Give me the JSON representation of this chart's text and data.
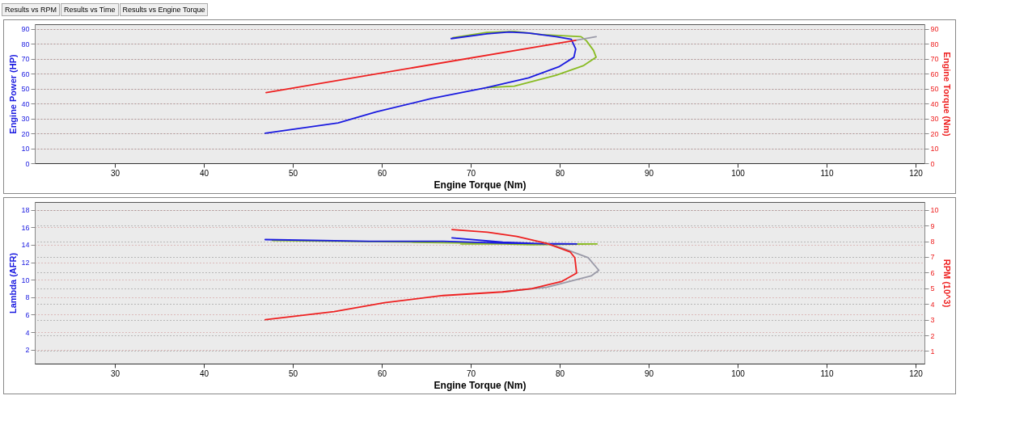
{
  "chart_data": [
    {
      "type": "line",
      "annotations": [
        "Results vs RPM",
        "Results vs Time",
        "Results vs Engine Torque"
      ],
      "xlabel": "Engine Torque (Nm)",
      "ylabel": "Engine Power (HP)",
      "y2label": "Engine Torque (Nm)",
      "xlim": [
        21,
        121
      ],
      "xticks": [
        30,
        40,
        50,
        60,
        70,
        80,
        90,
        100,
        110,
        120
      ],
      "ylim": [
        0,
        93
      ],
      "yticks": [
        0,
        10,
        20,
        30,
        40,
        50,
        60,
        70,
        80,
        90
      ],
      "y2lim": [
        0,
        93
      ],
      "y2ticks": [
        0,
        10,
        20,
        30,
        40,
        50,
        60,
        70,
        80,
        90
      ],
      "grid": "y",
      "series": [
        {
          "color": "#88bb22",
          "x": [
            71.8,
            74.9,
            79.6,
            82.7,
            84.1,
            83.8,
            83.0,
            82.4,
            78.0,
            74.9,
            71.8,
            68.0
          ],
          "values": [
            50.6,
            51.6,
            58.9,
            65.4,
            70.9,
            75.5,
            82,
            84.7,
            86,
            88.2,
            87.5,
            84
          ]
        },
        {
          "color": "#1a1ae0",
          "x": [
            46.9,
            55.1,
            59.4,
            65.6,
            71.8,
            76.5,
            79.9,
            81.6,
            81.8,
            81.3,
            79.6,
            76.5,
            74.3,
            71.8,
            67.8
          ],
          "values": [
            20.1,
            27,
            34.4,
            43.3,
            50.6,
            57.1,
            64.5,
            70.9,
            76.4,
            82.9,
            84.7,
            87.1,
            87.8,
            86.6,
            83.4
          ]
        },
        {
          "color": "#9a9aa8",
          "axis": "y2",
          "x": [
            81.8,
            84.1
          ],
          "values": [
            82.3,
            84.7
          ]
        },
        {
          "color": "#ee2020",
          "axis": "y2",
          "x": [
            47,
            81.8
          ],
          "values": [
            47.3,
            82.3
          ]
        }
      ]
    },
    {
      "type": "line",
      "xlabel": "Engine Torque (Nm)",
      "ylabel": "Lambda (AFR)",
      "y2label": "RPM (10^3)",
      "xlim": [
        21,
        121
      ],
      "xticks": [
        30,
        40,
        50,
        60,
        70,
        80,
        90,
        100,
        110,
        120
      ],
      "ylim": [
        0.4,
        18.9
      ],
      "yticks": [
        2,
        4,
        6,
        8,
        10,
        12,
        14,
        16,
        18
      ],
      "y2lim": [
        0.2,
        10.5
      ],
      "y2ticks": [
        1,
        2,
        3,
        4,
        5,
        6,
        7,
        8,
        9,
        10
      ],
      "grid": "y",
      "series": [
        {
          "color": "#88bb22",
          "x": [
            47.7,
            63.6,
            70.3,
            76.9,
            84.2,
            76.9,
            68.9
          ],
          "values": [
            14.5,
            14.3,
            14.2,
            14.0,
            14.1,
            14.1,
            14.1
          ]
        },
        {
          "color": "#1a1ae0",
          "x": [
            46.9,
            58.6,
            66.9,
            73.6,
            81.9,
            78.6,
            73.6,
            67.9
          ],
          "values": [
            14.6,
            14.4,
            14.4,
            14.2,
            14.1,
            14.1,
            14.3,
            14.8
          ]
        },
        {
          "color": "#9a9aa8",
          "axis": "y2",
          "x": [
            73.6,
            78.6,
            83.55,
            84.4,
            83.2,
            80.2,
            77.9
          ],
          "values": [
            4.77,
            5.07,
            5.79,
            6.15,
            6.95,
            7.58,
            7.94
          ]
        },
        {
          "color": "#ee2020",
          "axis": "y2",
          "x": [
            46.9,
            54.65,
            60.3,
            66.9,
            73.6,
            76.9,
            80.2,
            81.9,
            81.7,
            81.2,
            78.6,
            75.2,
            71.9,
            67.9
          ],
          "values": [
            3.0,
            3.51,
            4.08,
            4.54,
            4.77,
            4.98,
            5.43,
            5.97,
            6.95,
            7.31,
            7.85,
            8.3,
            8.57,
            8.74
          ]
        }
      ]
    }
  ]
}
